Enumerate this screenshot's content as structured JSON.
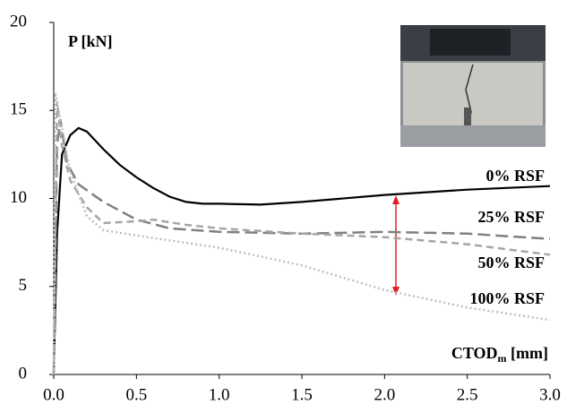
{
  "chart_data": {
    "type": "line",
    "y_label": "P [kN]",
    "x_label": {
      "main": "CTOD",
      "sub": "m",
      "unit": "[mm]"
    },
    "xlim": [
      0,
      3
    ],
    "ylim": [
      0,
      20
    ],
    "xticks": [
      {
        "value": 0,
        "label": "0.0"
      },
      {
        "value": 0.5,
        "label": "0.5"
      },
      {
        "value": 1,
        "label": "1.0"
      },
      {
        "value": 1.5,
        "label": "1.5"
      },
      {
        "value": 2,
        "label": "2.0"
      },
      {
        "value": 2.5,
        "label": "2.5"
      },
      {
        "value": 3,
        "label": "3.0"
      }
    ],
    "yticks": [
      0,
      5,
      10,
      15,
      20
    ],
    "grid": false,
    "series": [
      {
        "name": "0% RSF",
        "color": "#000000",
        "dash": "solid",
        "x": [
          0,
          0.02,
          0.05,
          0.1,
          0.15,
          0.2,
          0.3,
          0.4,
          0.5,
          0.6,
          0.7,
          0.8,
          0.9,
          1.0,
          1.25,
          1.5,
          2.0,
          2.5,
          3.0
        ],
        "values": [
          0,
          8,
          12.5,
          13.6,
          14,
          13.8,
          12.8,
          11.9,
          11.2,
          10.6,
          10.1,
          9.8,
          9.7,
          9.7,
          9.65,
          9.8,
          10.2,
          10.5,
          10.7
        ]
      },
      {
        "name": "25% RSF",
        "color": "#808080",
        "dash": "long",
        "x": [
          0,
          0.02,
          0.04,
          0.08,
          0.15,
          0.3,
          0.5,
          0.7,
          1.0,
          1.5,
          2.0,
          2.5,
          3.0
        ],
        "values": [
          0,
          13,
          14.5,
          12,
          10.8,
          9.8,
          8.8,
          8.3,
          8.1,
          8.0,
          8.1,
          8.0,
          7.7
        ]
      },
      {
        "name": "50% RSF",
        "color": "#a6a6a6",
        "dash": "short",
        "x": [
          0,
          0.02,
          0.05,
          0.1,
          0.2,
          0.3,
          0.5,
          0.6,
          0.8,
          1.0,
          1.5,
          2.0,
          2.5,
          3.0
        ],
        "values": [
          0,
          15.5,
          13,
          11,
          9.5,
          8.6,
          8.7,
          8.8,
          8.5,
          8.3,
          8.0,
          7.8,
          7.4,
          6.8
        ]
      },
      {
        "name": "100% RSF",
        "color": "#bfbfbf",
        "dash": "dot",
        "x": [
          0,
          0.01,
          0.05,
          0.1,
          0.2,
          0.3,
          0.5,
          1.0,
          1.5,
          2.0,
          2.5,
          3.0
        ],
        "values": [
          0,
          16,
          14,
          11.5,
          9,
          8.2,
          7.9,
          7.2,
          6.2,
          4.8,
          3.8,
          3.1
        ]
      }
    ]
  }
}
